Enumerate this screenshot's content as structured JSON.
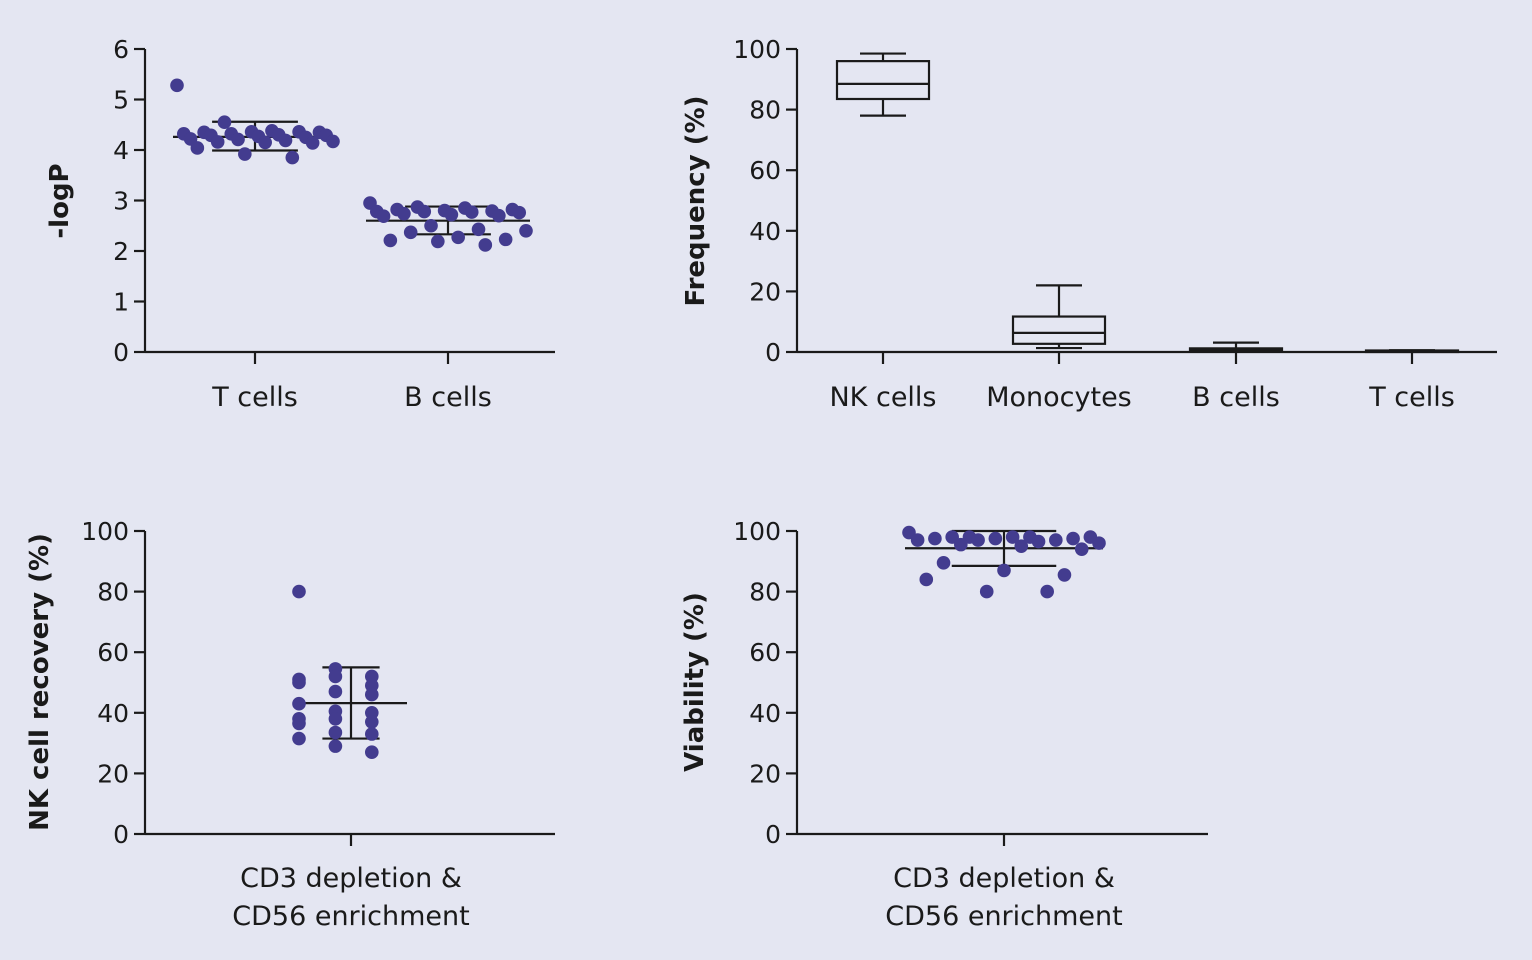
{
  "colors": {
    "background": "#e4e6f2",
    "point": "#433c8f",
    "ink": "#1a1a1a"
  },
  "chart_data": [
    {
      "id": "logp",
      "type": "scatter",
      "ylabel": "-logP",
      "ylim": [
        0,
        6
      ],
      "yticks": [
        0,
        1,
        2,
        3,
        4,
        5,
        6
      ],
      "categories": [
        "T cells",
        "B cells"
      ],
      "series": [
        {
          "name": "T cells",
          "values": [
            5.28,
            4.55,
            4.38,
            4.35,
            4.35,
            4.36,
            4.36,
            4.32,
            4.32,
            4.3,
            4.29,
            4.29,
            4.27,
            4.25,
            4.22,
            4.21,
            4.19,
            4.17,
            4.16,
            4.15,
            4.14,
            4.04,
            3.92,
            3.85
          ],
          "mean": 4.26,
          "sd_low": 3.99,
          "sd_high": 4.56
        },
        {
          "name": "B cells",
          "values": [
            2.95,
            2.87,
            2.85,
            2.82,
            2.82,
            2.8,
            2.79,
            2.78,
            2.78,
            2.77,
            2.76,
            2.74,
            2.72,
            2.7,
            2.69,
            2.5,
            2.43,
            2.4,
            2.37,
            2.27,
            2.23,
            2.21,
            2.19,
            2.12
          ],
          "mean": 2.6,
          "sd_low": 2.33,
          "sd_high": 2.88
        }
      ]
    },
    {
      "id": "frequency",
      "type": "box",
      "ylabel": "Frequency (%)",
      "ylim": [
        0,
        100
      ],
      "yticks": [
        0,
        20,
        40,
        60,
        80,
        100
      ],
      "categories": [
        "NK cells",
        "Monocytes",
        "B cells",
        "T cells"
      ],
      "boxes": [
        {
          "name": "NK cells",
          "min": 78,
          "q1": 83.5,
          "median": 88.5,
          "q3": 96,
          "max": 98.5
        },
        {
          "name": "Monocytes",
          "min": 1.3,
          "q1": 2.7,
          "median": 6.3,
          "q3": 11.7,
          "max": 22
        },
        {
          "name": "B cells",
          "min": 0.2,
          "q1": 0.5,
          "median": 0.8,
          "q3": 1.2,
          "max": 3.1
        },
        {
          "name": "T cells",
          "min": 0.1,
          "q1": 0.2,
          "median": 0.3,
          "q3": 0.5,
          "max": 0.6
        }
      ]
    },
    {
      "id": "recovery",
      "type": "scatter",
      "ylabel": "NK cell recovery (%)",
      "ylim": [
        0,
        100
      ],
      "yticks": [
        0,
        20,
        40,
        60,
        80,
        100
      ],
      "categories": [
        "CD3 depletion &\nCD56 enrichment"
      ],
      "category_lines": [
        "CD3 depletion &",
        "CD56 enrichment"
      ],
      "series": [
        {
          "name": "CD3 depletion & CD56 enrichment",
          "values": [
            80,
            54.5,
            52,
            51,
            52,
            49,
            50,
            47,
            46,
            43,
            40.5,
            40,
            38,
            38,
            37,
            36.5,
            33.5,
            33,
            31.5,
            29,
            27
          ],
          "mean": 43.2,
          "sd_low": 31.5,
          "sd_high": 55
        }
      ]
    },
    {
      "id": "viability",
      "type": "scatter",
      "ylabel": "Viability (%)",
      "ylim": [
        0,
        100
      ],
      "yticks": [
        0,
        20,
        40,
        60,
        80,
        100
      ],
      "categories": [
        "CD3 depletion &\nCD56 enrichment"
      ],
      "category_lines": [
        "CD3 depletion &",
        "CD56 enrichment"
      ],
      "series": [
        {
          "name": "CD3 depletion & CD56 enrichment",
          "values": [
            99.5,
            98,
            98,
            98,
            98,
            98,
            97.5,
            97.5,
            97.5,
            97,
            97,
            97,
            96.5,
            96,
            95.5,
            95,
            94,
            89.5,
            87,
            85.5,
            84,
            80,
            80
          ],
          "mean": 94.3,
          "sd_low": 88.5,
          "sd_high": 100
        }
      ]
    }
  ]
}
